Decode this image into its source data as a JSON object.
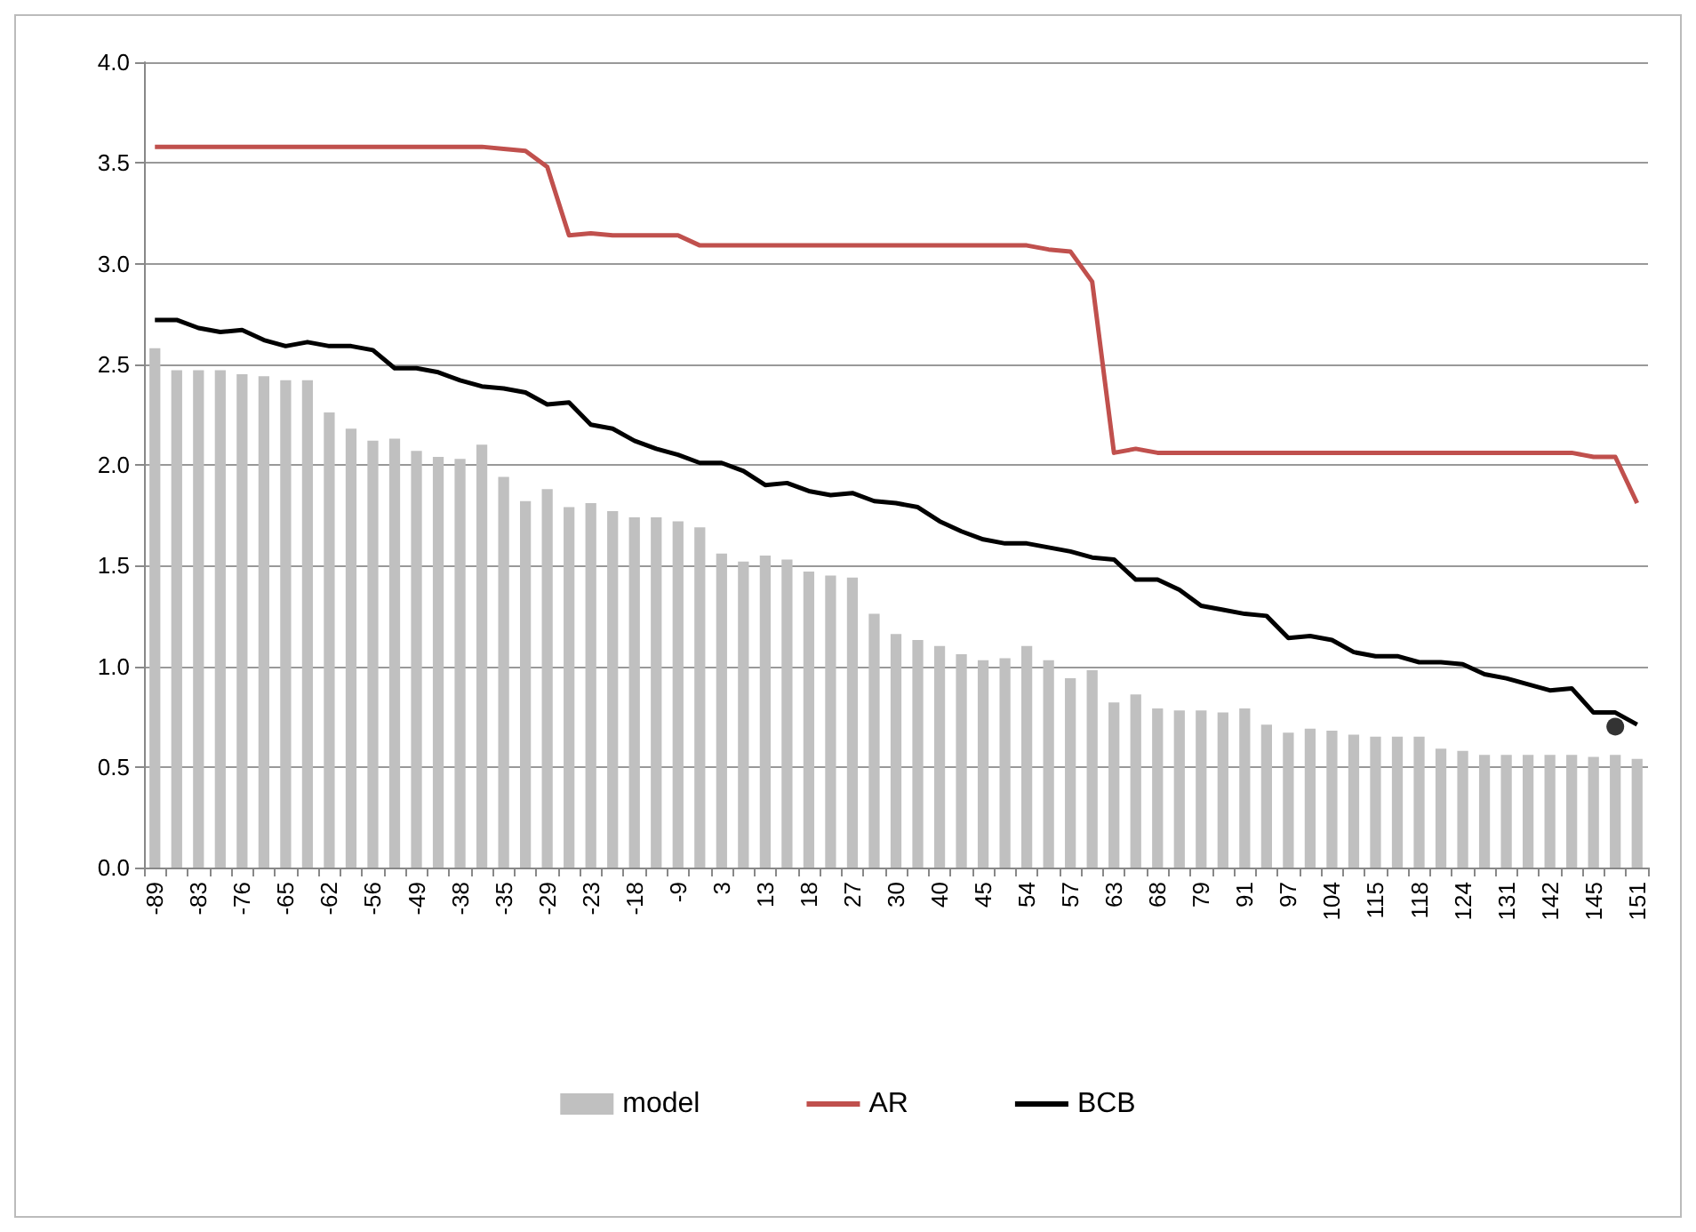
{
  "chart_data": {
    "type": "bar",
    "categories": [
      "-89",
      null,
      "-83",
      null,
      "-76",
      null,
      "-65",
      null,
      "-62",
      null,
      "-56",
      null,
      "-49",
      null,
      "-38",
      null,
      "-35",
      null,
      "-29",
      null,
      "-23",
      null,
      "-18",
      null,
      "-9",
      null,
      "3",
      null,
      "13",
      null,
      "18",
      null,
      "27",
      null,
      "30",
      null,
      "40",
      null,
      "45",
      null,
      "54",
      null,
      "57",
      null,
      "63",
      null,
      "68",
      null,
      "79",
      null,
      "91",
      null,
      "97",
      null,
      "104",
      null,
      "115",
      null,
      "118",
      null,
      "124",
      null,
      "131",
      null,
      "142",
      null,
      "145",
      null,
      "151"
    ],
    "series": [
      {
        "name": "model",
        "color": "#c0c0c0",
        "values": [
          2.58,
          2.47,
          2.47,
          2.47,
          2.45,
          2.44,
          2.42,
          2.42,
          2.26,
          2.18,
          2.12,
          2.13,
          2.07,
          2.04,
          2.03,
          2.1,
          1.94,
          1.82,
          1.88,
          1.79,
          1.81,
          1.77,
          1.74,
          1.74,
          1.72,
          1.69,
          1.56,
          1.52,
          1.55,
          1.53,
          1.47,
          1.45,
          1.44,
          1.26,
          1.16,
          1.13,
          1.1,
          1.06,
          1.03,
          1.04,
          1.1,
          1.03,
          0.94,
          0.98,
          0.82,
          0.86,
          0.79,
          0.78,
          0.78,
          0.77,
          0.79,
          0.71,
          0.67,
          0.69,
          0.68,
          0.66,
          0.65,
          0.65,
          0.65,
          0.59,
          0.58,
          0.56,
          0.56,
          0.56,
          0.56,
          0.56,
          0.55,
          0.56,
          0.54
        ]
      },
      {
        "name": "AR",
        "type": "line",
        "color": "#c0504d",
        "marker": "none",
        "values": [
          3.58,
          3.58,
          3.58,
          3.58,
          3.58,
          3.58,
          3.58,
          3.58,
          3.58,
          3.58,
          3.58,
          3.58,
          3.58,
          3.58,
          3.58,
          3.58,
          3.57,
          3.56,
          3.48,
          3.14,
          3.15,
          3.14,
          3.14,
          3.14,
          3.14,
          3.09,
          3.09,
          3.09,
          3.09,
          3.09,
          3.09,
          3.09,
          3.09,
          3.09,
          3.09,
          3.09,
          3.09,
          3.09,
          3.09,
          3.09,
          3.09,
          3.07,
          3.06,
          2.91,
          2.06,
          2.08,
          2.06,
          2.06,
          2.06,
          2.06,
          2.06,
          2.06,
          2.06,
          2.06,
          2.06,
          2.06,
          2.06,
          2.06,
          2.06,
          2.06,
          2.06,
          2.06,
          2.06,
          2.06,
          2.06,
          2.06,
          2.04,
          2.04,
          1.81
        ]
      },
      {
        "name": "BCB",
        "type": "line",
        "color": "#000000",
        "marker": "none",
        "values": [
          2.72,
          2.72,
          2.68,
          2.66,
          2.67,
          2.62,
          2.59,
          2.61,
          2.59,
          2.59,
          2.57,
          2.48,
          2.48,
          2.46,
          2.42,
          2.39,
          2.38,
          2.36,
          2.3,
          2.31,
          2.2,
          2.18,
          2.12,
          2.08,
          2.05,
          2.01,
          2.01,
          1.97,
          1.9,
          1.91,
          1.87,
          1.85,
          1.86,
          1.82,
          1.81,
          1.79,
          1.72,
          1.67,
          1.63,
          1.61,
          1.61,
          1.59,
          1.57,
          1.54,
          1.53,
          1.43,
          1.43,
          1.38,
          1.3,
          1.28,
          1.26,
          1.25,
          1.14,
          1.15,
          1.13,
          1.07,
          1.05,
          1.05,
          1.02,
          1.02,
          1.01,
          0.96,
          0.94,
          0.91,
          0.88,
          0.89,
          0.77,
          0.77,
          0.71
        ]
      },
      {
        "type": "scatter",
        "color": "#000000",
        "marker": "circle",
        "values": [
          null,
          null,
          null,
          null,
          null,
          null,
          null,
          null,
          null,
          null,
          null,
          null,
          null,
          null,
          null,
          null,
          null,
          null,
          null,
          null,
          null,
          null,
          null,
          null,
          null,
          null,
          null,
          null,
          null,
          null,
          null,
          null,
          null,
          null,
          null,
          null,
          null,
          null,
          null,
          null,
          null,
          null,
          null,
          null,
          null,
          null,
          null,
          null,
          null,
          null,
          null,
          null,
          null,
          null,
          null,
          null,
          null,
          null,
          null,
          null,
          null,
          null,
          null,
          null,
          null,
          null,
          null,
          0.7,
          null
        ]
      }
    ],
    "ylim": [
      0,
      4
    ],
    "yticks": [
      {
        "value": 0,
        "label": "0.0"
      },
      {
        "value": 0.5,
        "label": "0.5"
      },
      {
        "value": 1,
        "label": "1.0"
      },
      {
        "value": 1.5,
        "label": "1.5"
      },
      {
        "value": 2,
        "label": "2.0"
      },
      {
        "value": 2.5,
        "label": "2.5"
      },
      {
        "value": 3,
        "label": "3.0"
      },
      {
        "value": 3.5,
        "label": "3.5"
      },
      {
        "value": 4,
        "label": "4.0"
      }
    ],
    "grid": "y",
    "legend": "bottom"
  }
}
